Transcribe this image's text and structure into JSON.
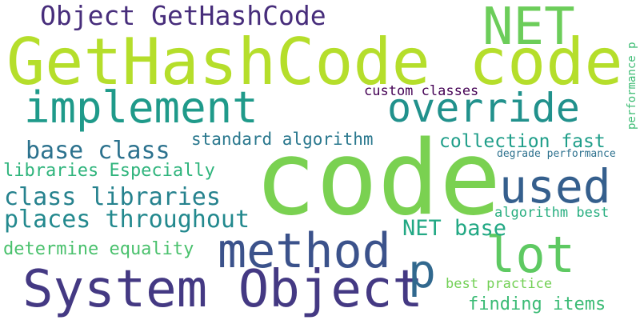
{
  "words": [
    {
      "text": "code",
      "color": "#7ad151"
    },
    {
      "text": "GetHashCode code",
      "color": "#b5de2b"
    },
    {
      "text": "override",
      "color": "#21918c"
    },
    {
      "text": "implement",
      "color": "#1f9a8a"
    },
    {
      "text": "NET",
      "color": "#6ccd5a"
    },
    {
      "text": "System Object",
      "color": "#443983"
    },
    {
      "text": "method",
      "color": "#3b528b"
    },
    {
      "text": "used",
      "color": "#355f8d"
    },
    {
      "text": "lot",
      "color": "#5ec962"
    },
    {
      "text": "p",
      "color": "#31688e"
    },
    {
      "text": "Object GetHashCode",
      "color": "#472d7b"
    },
    {
      "text": "base class",
      "color": "#2c728e"
    },
    {
      "text": "class libraries",
      "color": "#26828e"
    },
    {
      "text": "places throughout",
      "color": "#23898e"
    },
    {
      "text": "NET base",
      "color": "#22a884"
    },
    {
      "text": "libraries Especially",
      "color": "#2fb47c"
    },
    {
      "text": "determine equality",
      "color": "#4ac16d"
    },
    {
      "text": "standard algorithm",
      "color": "#2a788e"
    },
    {
      "text": "collection fast",
      "color": "#1f9e89"
    },
    {
      "text": "custom classes",
      "color": "#440154"
    },
    {
      "text": "degrade performance",
      "color": "#2d718e"
    },
    {
      "text": "algorithm best",
      "color": "#28ae80"
    },
    {
      "text": "best practice",
      "color": "#73d056"
    },
    {
      "text": "finding items",
      "color": "#3bbb75"
    },
    {
      "text": "performance p",
      "color": "#3dbc74"
    }
  ]
}
